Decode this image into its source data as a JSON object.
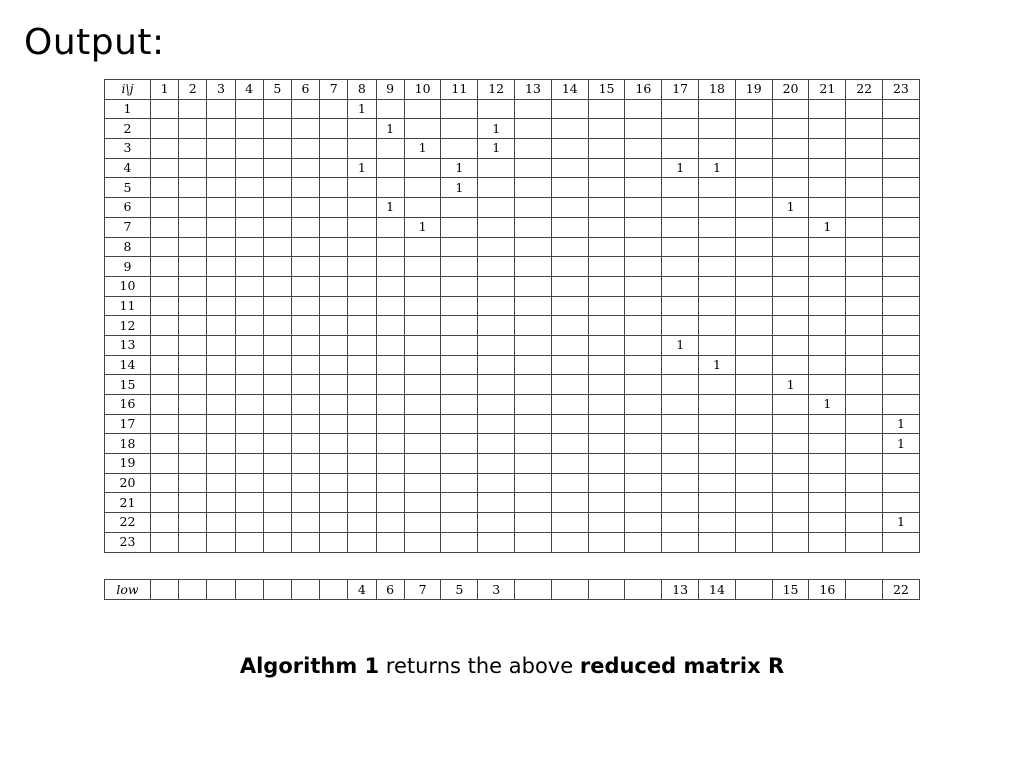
{
  "slide": {
    "title": "Output:"
  },
  "matrix": {
    "corner_label": "i\\j",
    "columns": [
      "1",
      "2",
      "3",
      "4",
      "5",
      "6",
      "7",
      "8",
      "9",
      "10",
      "11",
      "12",
      "13",
      "14",
      "15",
      "16",
      "17",
      "18",
      "19",
      "20",
      "21",
      "22",
      "23"
    ],
    "row_labels": [
      "1",
      "2",
      "3",
      "4",
      "5",
      "6",
      "7",
      "8",
      "9",
      "10",
      "11",
      "12",
      "13",
      "14",
      "15",
      "16",
      "17",
      "18",
      "19",
      "20",
      "21",
      "22",
      "23"
    ],
    "entries": [
      {
        "row": 1,
        "col": 8,
        "value": "1"
      },
      {
        "row": 2,
        "col": 9,
        "value": "1"
      },
      {
        "row": 2,
        "col": 12,
        "value": "1"
      },
      {
        "row": 3,
        "col": 10,
        "value": "1"
      },
      {
        "row": 3,
        "col": 12,
        "value": "1"
      },
      {
        "row": 4,
        "col": 8,
        "value": "1"
      },
      {
        "row": 4,
        "col": 11,
        "value": "1"
      },
      {
        "row": 4,
        "col": 17,
        "value": "1"
      },
      {
        "row": 4,
        "col": 18,
        "value": "1"
      },
      {
        "row": 5,
        "col": 11,
        "value": "1"
      },
      {
        "row": 6,
        "col": 9,
        "value": "1"
      },
      {
        "row": 6,
        "col": 20,
        "value": "1"
      },
      {
        "row": 7,
        "col": 10,
        "value": "1"
      },
      {
        "row": 7,
        "col": 21,
        "value": "1"
      },
      {
        "row": 13,
        "col": 17,
        "value": "1"
      },
      {
        "row": 14,
        "col": 18,
        "value": "1"
      },
      {
        "row": 15,
        "col": 20,
        "value": "1"
      },
      {
        "row": 16,
        "col": 21,
        "value": "1"
      },
      {
        "row": 17,
        "col": 23,
        "value": "1"
      },
      {
        "row": 18,
        "col": 23,
        "value": "1"
      },
      {
        "row": 22,
        "col": 23,
        "value": "1"
      }
    ]
  },
  "low_row": {
    "label": "low",
    "values": [
      "",
      "",
      "",
      "",
      "",
      "",
      "",
      "4",
      "6",
      "7",
      "5",
      "3",
      "",
      "",
      "",
      "",
      "13",
      "14",
      "",
      "15",
      "16",
      "",
      "22"
    ]
  },
  "caption": {
    "part1": "Algorithm 1",
    "part2": " returns the above ",
    "part3": "reduced matrix R"
  }
}
